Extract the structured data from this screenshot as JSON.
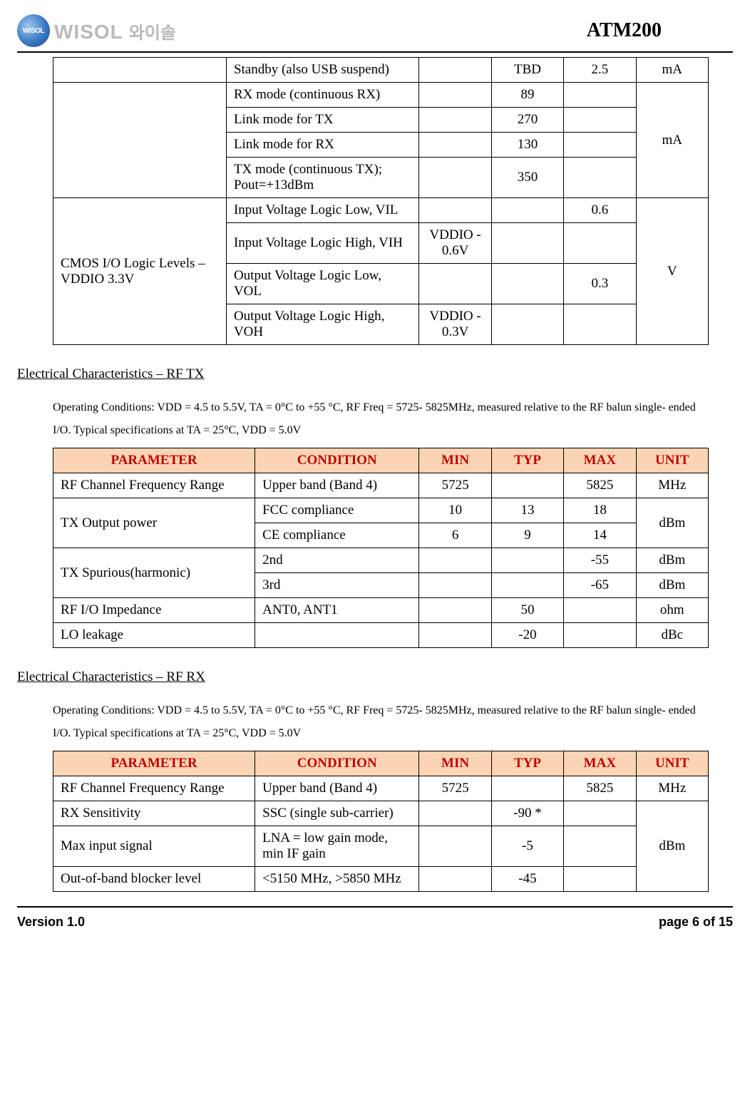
{
  "header": {
    "logo_circle_text": "WiSOL",
    "logo_text": "WISOL",
    "logo_korean": "와이솔",
    "product": "ATM200"
  },
  "table1": {
    "rows": [
      {
        "p": "",
        "c": "Standby (also USB suspend)",
        "min": "",
        "typ": "TBD",
        "max": "2.5",
        "unit": "mA",
        "unit_rowspan": 1
      },
      {
        "p": "",
        "c": "RX mode (continuous RX)",
        "min": "",
        "typ": "89",
        "max": "",
        "unit": "mA",
        "unit_rowspan": 4,
        "p_rowspan": 4
      },
      {
        "c": "Link mode for TX",
        "min": "",
        "typ": "270",
        "max": ""
      },
      {
        "c": "Link mode for RX",
        "min": "",
        "typ": "130",
        "max": ""
      },
      {
        "c": "TX mode (continuous TX); Pout=+13dBm",
        "min": "",
        "typ": "350",
        "max": ""
      },
      {
        "p": "CMOS I/O Logic Levels – VDDIO 3.3V",
        "c": "Input Voltage Logic Low, VIL",
        "min": "",
        "typ": "",
        "max": "0.6",
        "unit": "V",
        "unit_rowspan": 4,
        "p_rowspan": 4
      },
      {
        "c": "Input Voltage Logic High, VIH",
        "min": "VDDIO - 0.6V",
        "typ": "",
        "max": ""
      },
      {
        "c": "Output Voltage Logic Low, VOL",
        "min": "",
        "typ": "",
        "max": "0.3"
      },
      {
        "c": "Output Voltage Logic High, VOH",
        "min": "VDDIO - 0.3V",
        "typ": "",
        "max": ""
      }
    ]
  },
  "section_rftx": {
    "title": "Electrical Characteristics – RF TX",
    "conditions": "Operating Conditions: VDD = 4.5 to 5.5V, TA = 0°C to +55 °C, RF Freq = 5725‐ 5825MHz, measured relative to the RF balun single‐ ended I/O. Typical specifications at TA = 25°C, VDD = 5.0V",
    "headers": [
      "PARAMETER",
      "CONDITION",
      "MIN",
      "TYP",
      "MAX",
      "UNIT"
    ],
    "rows": [
      {
        "p": "RF Channel Frequency Range",
        "c": "Upper band (Band 4)",
        "min": "5725",
        "typ": "",
        "max": "5825",
        "unit": "MHz",
        "unit_rowspan": 1
      },
      {
        "p": "TX Output power",
        "c": "FCC compliance",
        "min": "10",
        "typ": "13",
        "max": "18",
        "unit": "dBm",
        "unit_rowspan": 2,
        "p_rowspan": 2
      },
      {
        "c": "CE compliance",
        "min": "6",
        "typ": "9",
        "max": "14"
      },
      {
        "p": "TX Spurious(harmonic)",
        "c": "2nd",
        "min": "",
        "typ": "",
        "max": "-55",
        "unit": "dBm",
        "unit_rowspan": 1,
        "p_rowspan": 2
      },
      {
        "c": "3rd",
        "min": "",
        "typ": "",
        "max": "-65",
        "unit": "dBm",
        "unit_rowspan": 1
      },
      {
        "p": "RF I/O Impedance",
        "c": "ANT0, ANT1",
        "min": "",
        "typ": "50",
        "max": "",
        "unit": "ohm",
        "unit_rowspan": 1
      },
      {
        "p": "LO leakage",
        "c": "",
        "min": "",
        "typ": "-20",
        "max": "",
        "unit": "dBc",
        "unit_rowspan": 1
      }
    ]
  },
  "section_rfrx": {
    "title": "Electrical Characteristics – RF RX",
    "conditions": "Operating Conditions: VDD = 4.5 to 5.5V, TA = 0°C to +55 °C, RF Freq = 5725‐ 5825MHz, measured relative to the RF balun single‐ ended I/O. Typical specifications at TA = 25°C, VDD = 5.0V",
    "headers": [
      "PARAMETER",
      "CONDITION",
      "MIN",
      "TYP",
      "MAX",
      "UNIT"
    ],
    "rows": [
      {
        "p": "RF Channel Frequency Range",
        "c": "Upper band (Band 4)",
        "min": "5725",
        "typ": "",
        "max": "5825",
        "unit": "MHz",
        "unit_rowspan": 1
      },
      {
        "p": "RX Sensitivity",
        "c": "SSC (single sub-carrier)",
        "min": "",
        "typ": "-90 *",
        "max": "",
        "unit": "dBm",
        "unit_rowspan": 3
      },
      {
        "p": "Max input signal",
        "c": "LNA = low gain mode, min IF gain",
        "min": "",
        "typ": "-5",
        "max": ""
      },
      {
        "p": "Out-of-band blocker level",
        "c": "<5150 MHz, >5850 MHz",
        "min": "",
        "typ": "-45",
        "max": ""
      }
    ]
  },
  "footer": {
    "version": "Version 1.0",
    "page": "page 6 of 15"
  }
}
